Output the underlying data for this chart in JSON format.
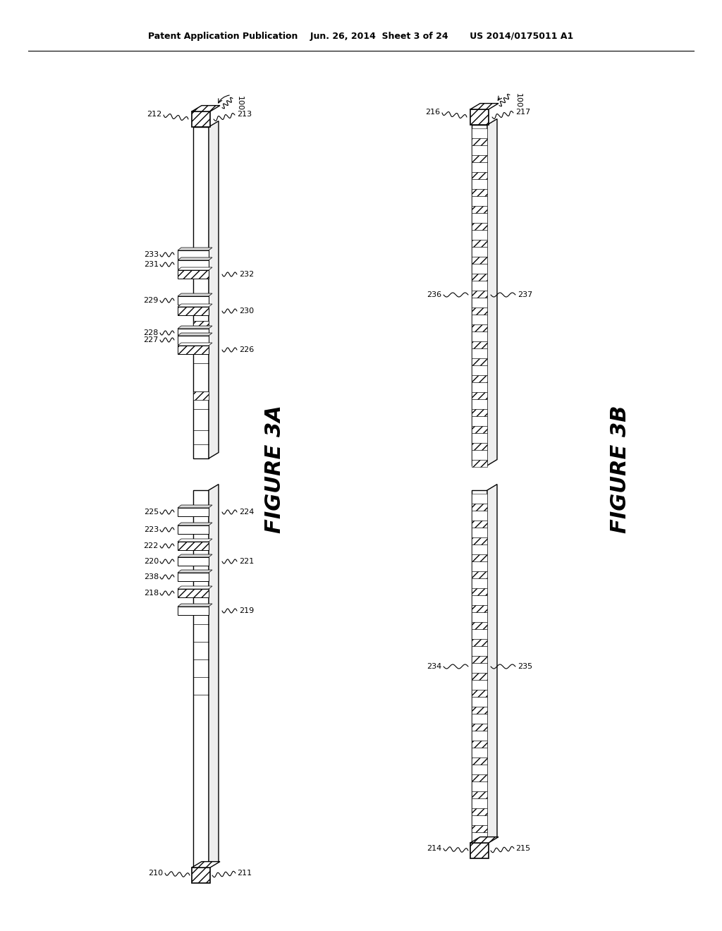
{
  "header": "Patent Application Publication    Jun. 26, 2014  Sheet 3 of 24       US 2014/0175011 A1",
  "bg_color": "#ffffff",
  "fig_width": 10.24,
  "fig_height": 13.2,
  "fig3a_label": "FIGURE 3A",
  "fig3b_label": "FIGURE 3B"
}
